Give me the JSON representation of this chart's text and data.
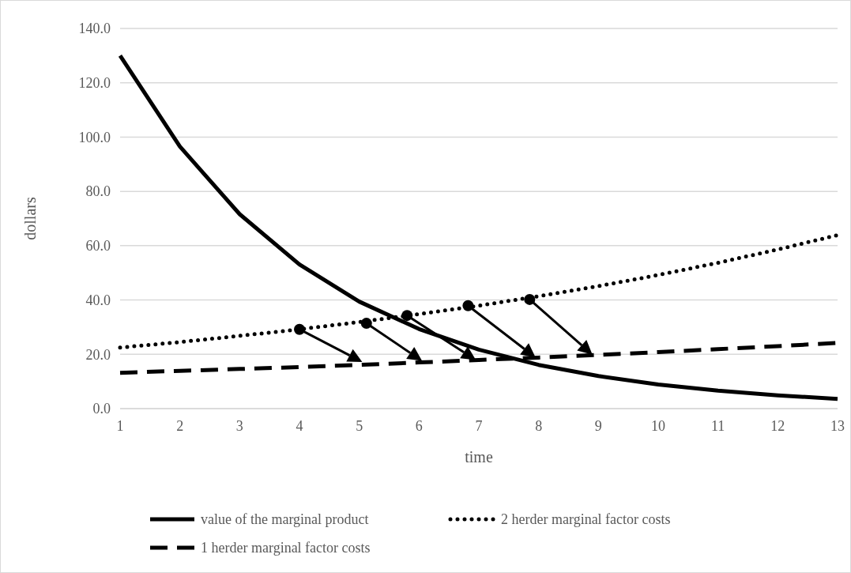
{
  "chart_data": {
    "type": "line",
    "xlabel": "time",
    "ylabel": "dollars",
    "x": [
      1,
      2,
      3,
      4,
      5,
      6,
      7,
      8,
      9,
      10,
      11,
      12,
      13
    ],
    "xlim": [
      1,
      13
    ],
    "xticks": [
      1,
      2,
      3,
      4,
      5,
      6,
      7,
      8,
      9,
      10,
      11,
      12,
      13
    ],
    "ylim": [
      0,
      140
    ],
    "yticks": [
      {
        "value": 0,
        "label": "0.0"
      },
      {
        "value": 20,
        "label": "20.0"
      },
      {
        "value": 40,
        "label": "40.0"
      },
      {
        "value": 60,
        "label": "60.0"
      },
      {
        "value": 80,
        "label": "80.0"
      },
      {
        "value": 100,
        "label": "100.0"
      },
      {
        "value": 120,
        "label": "120.0"
      },
      {
        "value": 140,
        "label": "140.0"
      }
    ],
    "grid": "y",
    "legend": "bottom",
    "marker": "none",
    "series": [
      {
        "name": "value of the marginal product",
        "color": "#000000",
        "line_style": "solid",
        "values": [
          130,
          96.5,
          71.6,
          53.1,
          39.4,
          29.3,
          21.7,
          16.1,
          12.0,
          8.9,
          6.6,
          4.9,
          3.6
        ]
      },
      {
        "name": "2 herder marginal factor costs",
        "color": "#000000",
        "line_style": "dotted",
        "values": [
          22.5,
          24.5,
          26.8,
          29.2,
          31.9,
          34.8,
          37.9,
          41.4,
          45.1,
          49.2,
          53.7,
          58.6,
          63.9
        ]
      },
      {
        "name": "1 herder marginal factor costs",
        "color": "#000000",
        "line_style": "dashed",
        "values": [
          13.2,
          13.9,
          14.6,
          15.3,
          16.1,
          17.0,
          17.9,
          18.8,
          19.8,
          20.8,
          21.9,
          23.0,
          24.2
        ]
      }
    ]
  }
}
